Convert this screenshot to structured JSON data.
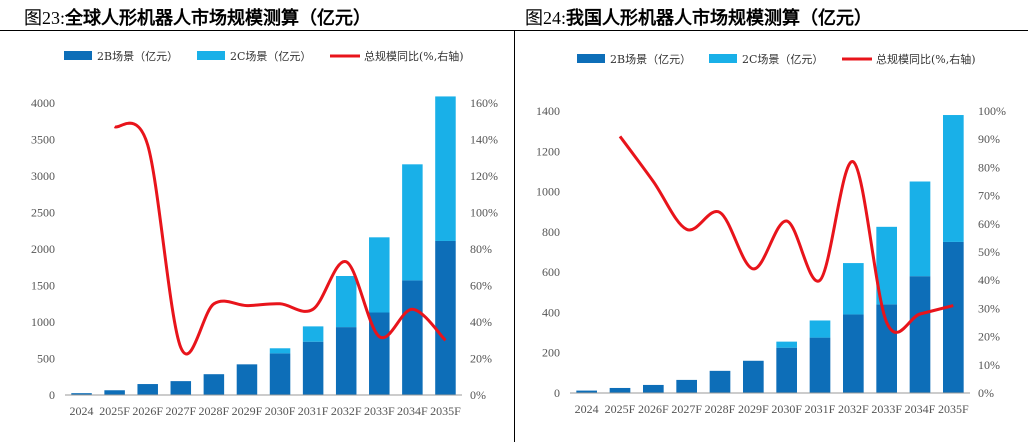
{
  "figures": [
    {
      "num_label": "图23:",
      "title": "全球人形机器人市场规模测算（亿元）"
    },
    {
      "num_label": "图24:",
      "title": "我国人形机器人市场规模测算（亿元）"
    }
  ],
  "colors": {
    "b2b": "#0d6eb8",
    "b2c": "#19b0e8",
    "yoy": "#e8141b",
    "axis": "#999999"
  },
  "chart_data": [
    {
      "type": "bar",
      "stacked": true,
      "categories": [
        "2024",
        "2025F",
        "2026F",
        "2027F",
        "2028F",
        "2029F",
        "2030F",
        "2031F",
        "2032F",
        "2033F",
        "2034F",
        "2035F"
      ],
      "series": [
        {
          "name": "2B场景（亿元）",
          "type": "bar",
          "values": [
            25,
            65,
            150,
            190,
            285,
            420,
            570,
            730,
            930,
            1130,
            1570,
            2110
          ]
        },
        {
          "name": "2C场景（亿元）",
          "type": "bar",
          "values": [
            0,
            0,
            0,
            0,
            0,
            0,
            70,
            210,
            700,
            1030,
            1590,
            1980
          ]
        },
        {
          "name": "总规模同比(%,右轴)",
          "type": "line",
          "axis": "right",
          "values": [
            null,
            147,
            137,
            26,
            50,
            49,
            50,
            47,
            73,
            32,
            47,
            30
          ]
        }
      ],
      "yticks": [
        "0",
        "500",
        "1000",
        "1500",
        "2000",
        "2500",
        "3000",
        "3500",
        "4000"
      ],
      "ylim": [
        0,
        4000
      ],
      "y2ticks": [
        "0%",
        "20%",
        "40%",
        "60%",
        "80%",
        "100%",
        "120%",
        "140%",
        "160%"
      ],
      "y2lim": [
        0,
        160
      ],
      "legend_position": "top"
    },
    {
      "type": "bar",
      "stacked": true,
      "categories": [
        "2024",
        "2025F",
        "2026F",
        "2027F",
        "2028F",
        "2029F",
        "2030F",
        "2031F",
        "2032F",
        "2033F",
        "2034F",
        "2035F"
      ],
      "series": [
        {
          "name": "2B场景（亿元）",
          "type": "bar",
          "values": [
            12,
            25,
            40,
            65,
            110,
            160,
            225,
            275,
            390,
            440,
            580,
            750
          ]
        },
        {
          "name": "2C场景（亿元）",
          "type": "bar",
          "values": [
            0,
            0,
            0,
            0,
            0,
            0,
            30,
            85,
            255,
            385,
            470,
            630
          ]
        },
        {
          "name": "总规模同比(%,右轴)",
          "type": "line",
          "axis": "right",
          "values": [
            null,
            91,
            75,
            58,
            64,
            44,
            61,
            40,
            82,
            25,
            28,
            31
          ]
        }
      ],
      "yticks": [
        "0",
        "200",
        "400",
        "600",
        "800",
        "1000",
        "1200",
        "1400"
      ],
      "ylim": [
        0,
        1400
      ],
      "y2ticks": [
        "0%",
        "10%",
        "20%",
        "30%",
        "40%",
        "50%",
        "60%",
        "70%",
        "80%",
        "90%",
        "100%"
      ],
      "y2lim": [
        0,
        100
      ],
      "legend_position": "top"
    }
  ]
}
